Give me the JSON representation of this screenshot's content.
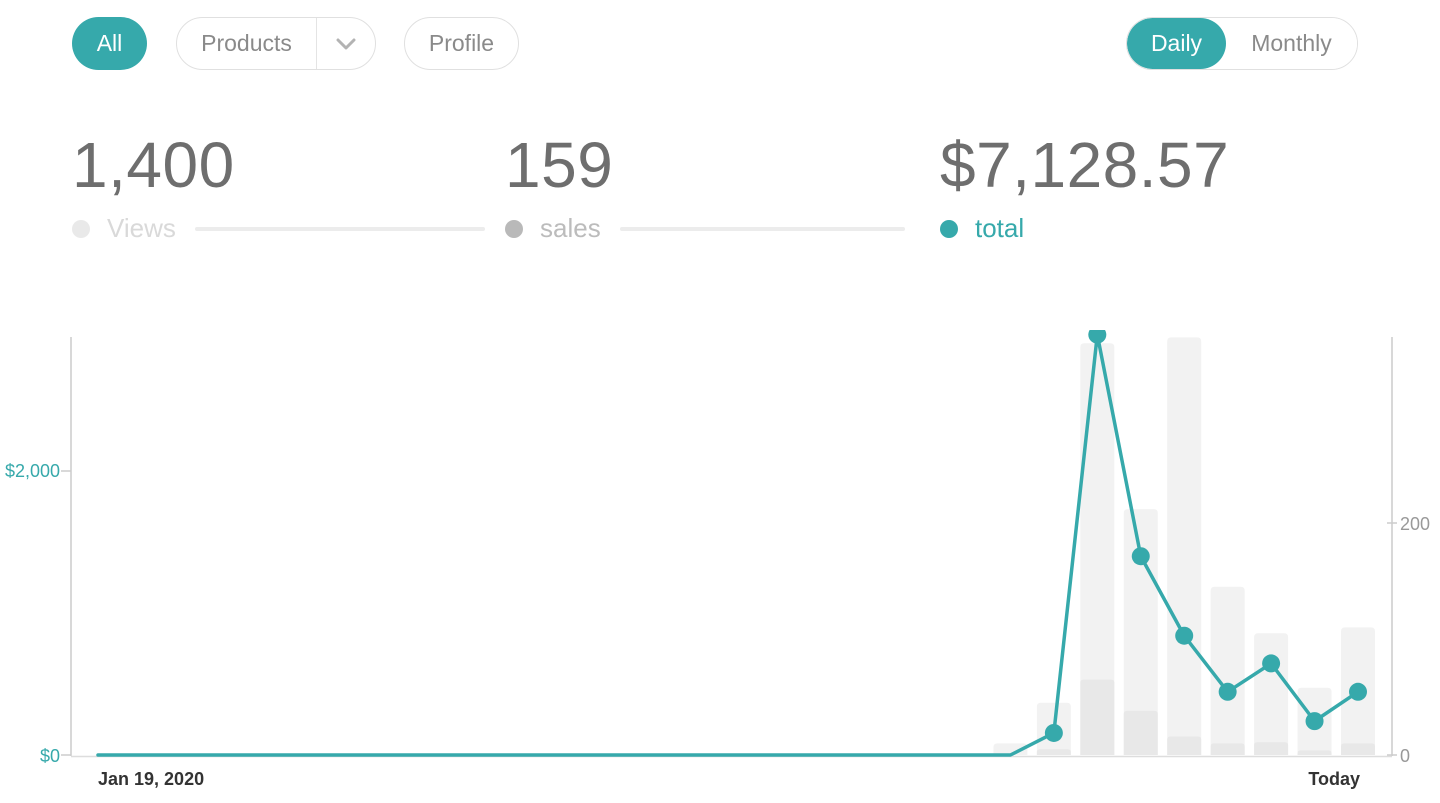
{
  "colors": {
    "accent": "#36a9ab",
    "views_bar": "#f2f2f2",
    "sales_bar": "#e8e8e8",
    "axis_line": "#cccccc",
    "baseline": "#dddddd",
    "right_tick_text": "#999999",
    "date_label_text": "#333333"
  },
  "header": {
    "filters": [
      {
        "label": "All",
        "active": true
      },
      {
        "label": "Products",
        "active": false,
        "has_dropdown": true
      },
      {
        "label": "Profile",
        "active": false
      }
    ],
    "period_toggle": [
      {
        "label": "Daily",
        "active": true
      },
      {
        "label": "Monthly",
        "active": false
      }
    ]
  },
  "stats": [
    {
      "value": "1,400",
      "label": "Views",
      "dot_color": "#e9e9e9",
      "label_color": "#d9d9d9",
      "has_rule": true
    },
    {
      "value": "159",
      "label": "sales",
      "dot_color": "#b9b9b9",
      "label_color": "#bcbcbc",
      "has_rule": true
    },
    {
      "value": "$7,128.57",
      "label": "total",
      "dot_color": "#36a9ab",
      "label_color": "#36a9ab",
      "has_rule": false
    }
  ],
  "chart_data": {
    "type": "line+bar combo",
    "num_points": 30,
    "x_axis": {
      "start_label": "Jan 19, 2020",
      "end_label": "Today"
    },
    "left_axis": {
      "title": "total ($)",
      "ticks": [
        "$0",
        "$2,000"
      ],
      "tick_values": [
        0,
        2000
      ],
      "range": [
        0,
        2960
      ]
    },
    "right_axis": {
      "title": "views/sales count",
      "ticks": [
        "0",
        "200"
      ],
      "tick_values": [
        0,
        200
      ],
      "range": [
        0,
        360
      ]
    },
    "grid": false,
    "legend_position": "above-chart (stats row)",
    "series": [
      {
        "name": "Views",
        "type": "bar",
        "axis": "right",
        "color": "#f2f2f2",
        "values": [
          0,
          0,
          0,
          0,
          0,
          0,
          0,
          0,
          0,
          0,
          0,
          0,
          0,
          0,
          0,
          0,
          0,
          0,
          0,
          0,
          0,
          10,
          45,
          355,
          212,
          360,
          145,
          105,
          58,
          110
        ]
      },
      {
        "name": "sales",
        "type": "bar",
        "axis": "right",
        "color": "#e8e8e8",
        "values": [
          0,
          0,
          0,
          0,
          0,
          0,
          0,
          0,
          0,
          0,
          0,
          0,
          0,
          0,
          0,
          0,
          0,
          0,
          0,
          0,
          0,
          0,
          5,
          65,
          38,
          16,
          10,
          11,
          4,
          10
        ]
      },
      {
        "name": "total",
        "type": "line",
        "axis": "left",
        "color": "#36a9ab",
        "values": [
          0,
          0,
          0,
          0,
          0,
          0,
          0,
          0,
          0,
          0,
          0,
          0,
          0,
          0,
          0,
          0,
          0,
          0,
          0,
          0,
          0,
          0,
          155,
          2960,
          1400,
          840,
          445,
          645,
          238.57,
          445
        ]
      }
    ]
  }
}
